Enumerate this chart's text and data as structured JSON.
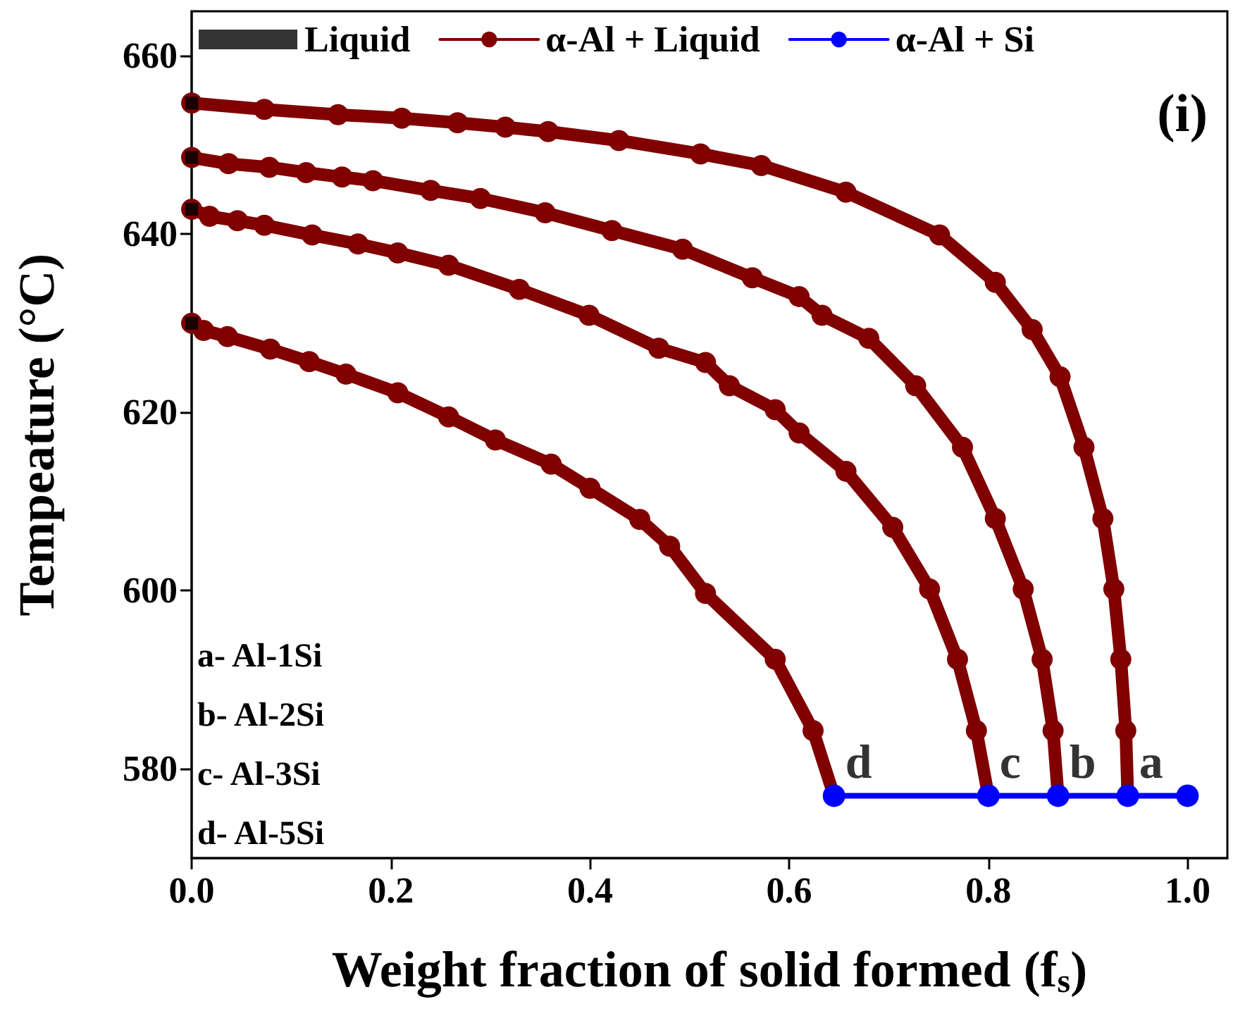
{
  "chart_data": {
    "type": "line",
    "xlabel": "Weight fraction of solid formed (f$_{s}$)",
    "ylabel": "Tempeature (°C)",
    "xlim": [
      0,
      1.04
    ],
    "xticks": [
      {
        "value": 0,
        "label": "0.0"
      },
      0.2,
      0.4,
      0.6,
      0.8,
      {
        "value": 1,
        "label": "1.0"
      }
    ],
    "ylim": [
      570,
      665
    ],
    "yticks": [
      580,
      600,
      620,
      640,
      660
    ],
    "grid": false,
    "legend": "top",
    "marker": "circle",
    "line_style": "solid",
    "series": [
      {
        "name": "Liquid",
        "type": "scatter",
        "marker": "square",
        "color": "#000000",
        "x": [
          0,
          0,
          0,
          0
        ],
        "values": [
          654.7,
          648.6,
          642.8,
          630.0
        ]
      },
      {
        "name": "α-Al + Liquid",
        "color": "#800000",
        "x": [
          0,
          0.073,
          0.147,
          0.211,
          0.267,
          0.315,
          0.358,
          0.429,
          0.511,
          0.572,
          0.657,
          0.751,
          0.807,
          0.844,
          0.872,
          0.896,
          0.915,
          0.926,
          0.933,
          0.938,
          0.94
        ],
        "values": [
          654.7,
          654.0,
          653.4,
          653.0,
          652.5,
          652.0,
          651.5,
          650.5,
          649.0,
          647.7,
          644.7,
          639.9,
          634.6,
          629.3,
          624.0,
          616.1,
          608.1,
          600.2,
          592.3,
          584.3,
          577
        ]
      },
      {
        "color": "#800000",
        "x": [
          0,
          0.037,
          0.078,
          0.115,
          0.151,
          0.182,
          0.24,
          0.29,
          0.355,
          0.422,
          0.493,
          0.563,
          0.61,
          0.633,
          0.68,
          0.727,
          0.774,
          0.807,
          0.835,
          0.854,
          0.865,
          0.87
        ],
        "values": [
          648.6,
          647.9,
          647.5,
          646.9,
          646.4,
          646.0,
          644.9,
          644.0,
          642.4,
          640.4,
          638.3,
          635.1,
          633.0,
          630.9,
          628.3,
          623.0,
          616.1,
          608.1,
          600.2,
          592.3,
          584.3,
          577
        ]
      },
      {
        "color": "#800000",
        "x": [
          0,
          0.018,
          0.046,
          0.073,
          0.121,
          0.167,
          0.207,
          0.258,
          0.329,
          0.399,
          0.469,
          0.516,
          0.54,
          0.586,
          0.61,
          0.657,
          0.704,
          0.741,
          0.769,
          0.788,
          0.8
        ],
        "values": [
          642.8,
          642.0,
          641.5,
          641.0,
          639.9,
          638.9,
          637.9,
          636.5,
          633.8,
          630.9,
          627.2,
          625.6,
          623.0,
          620.3,
          617.7,
          613.4,
          607.1,
          600.2,
          592.3,
          584.3,
          577
        ]
      },
      {
        "color": "#800000",
        "x": [
          0,
          0.012,
          0.036,
          0.079,
          0.118,
          0.155,
          0.207,
          0.258,
          0.305,
          0.361,
          0.4,
          0.45,
          0.48,
          0.516,
          0.586,
          0.624,
          0.645
        ],
        "values": [
          630.0,
          629.2,
          628.5,
          627.1,
          625.7,
          624.3,
          622.2,
          619.5,
          616.9,
          614.2,
          611.5,
          608,
          605,
          599.7,
          592.3,
          584.3,
          577
        ]
      },
      {
        "name": "α-Al + Si",
        "color": "#0000ff",
        "x": [
          0.645,
          0.8,
          0.87,
          0.94,
          1.0
        ],
        "values": [
          577,
          577,
          577,
          577,
          577
        ]
      }
    ],
    "annotations": [
      "(i)",
      "a- Al-1Si",
      "b- Al-2Si",
      "c- Al-3Si",
      "d- Al-5Si",
      {
        "text": "a",
        "x": 0.94,
        "y": 577
      },
      {
        "text": "b",
        "x": 0.87,
        "y": 577
      },
      {
        "text": "c",
        "x": 0.8,
        "y": 577
      },
      {
        "text": "d",
        "x": 0.645,
        "y": 577
      }
    ]
  }
}
